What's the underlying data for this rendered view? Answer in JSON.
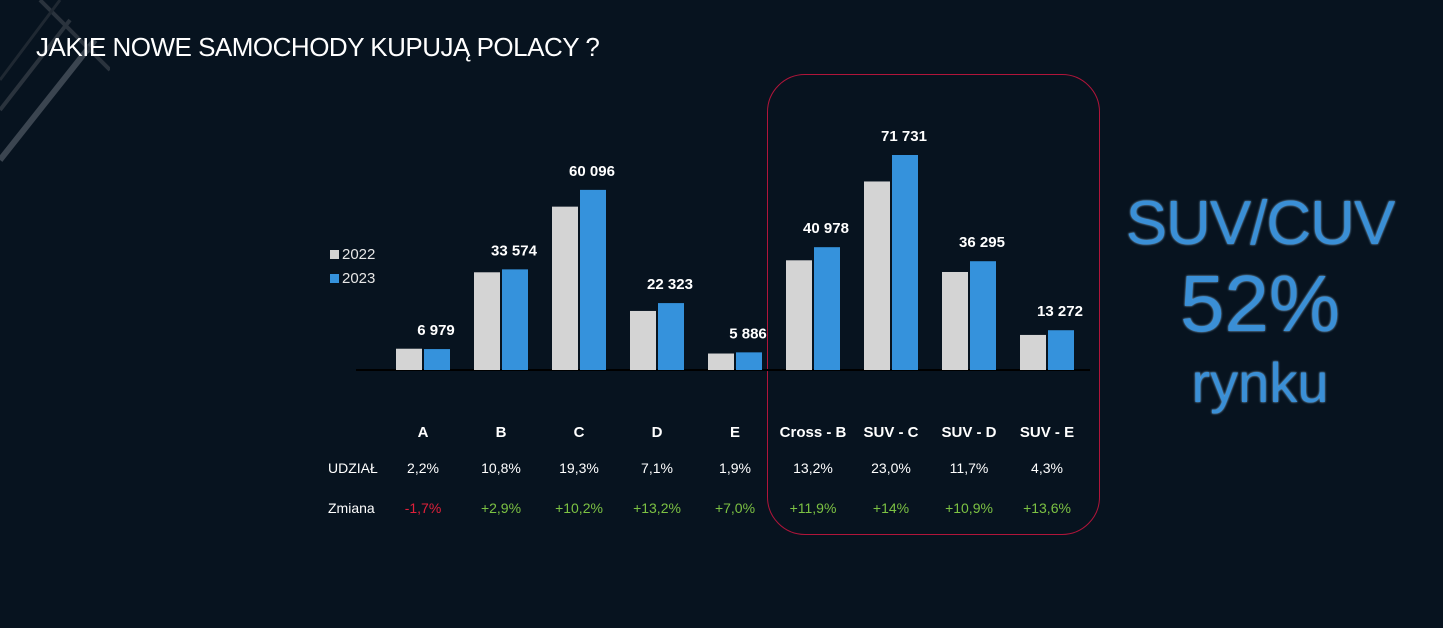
{
  "title": "JAKIE NOWE SAMOCHODY KUPUJĄ POLACY ?",
  "legend": [
    "2022",
    "2023"
  ],
  "colors": {
    "series_2022": "#d4d4d4",
    "series_2023": "#3592dc",
    "positive": "#7cc243",
    "negative": "#e0203a",
    "highlight": "#b0153a"
  },
  "row_labels": {
    "share": "UDZIAŁ",
    "change": "Zmiana"
  },
  "chart_data": {
    "type": "bar",
    "categories": [
      "A",
      "B",
      "C",
      "D",
      "E",
      "Cross - B",
      "SUV - C",
      "SUV - D",
      "SUV - E"
    ],
    "series": [
      {
        "name": "2022",
        "values": [
          7100,
          32600,
          54500,
          19700,
          5500,
          36600,
          62900,
          32700,
          11700
        ]
      },
      {
        "name": "2023",
        "values": [
          6979,
          33574,
          60096,
          22323,
          5886,
          40978,
          71731,
          36295,
          13272
        ]
      }
    ],
    "data_labels": [
      "6 979",
      "33 574",
      "60 096",
      "22 323",
      "5 886",
      "40 978",
      "71 731",
      "36 295",
      "13 272"
    ],
    "share": [
      "2,2%",
      "10,8%",
      "19,3%",
      "7,1%",
      "1,9%",
      "13,2%",
      "23,0%",
      "11,7%",
      "4,3%"
    ],
    "change": [
      "-1,7%",
      "+2,9%",
      "+10,2%",
      "+13,2%",
      "+7,0%",
      "+11,9%",
      "+14%",
      "+10,9%",
      "+13,6%"
    ],
    "legend_position": "left"
  },
  "callout": {
    "line1": "SUV/CUV",
    "line2": "52%",
    "line3": "rynku"
  }
}
